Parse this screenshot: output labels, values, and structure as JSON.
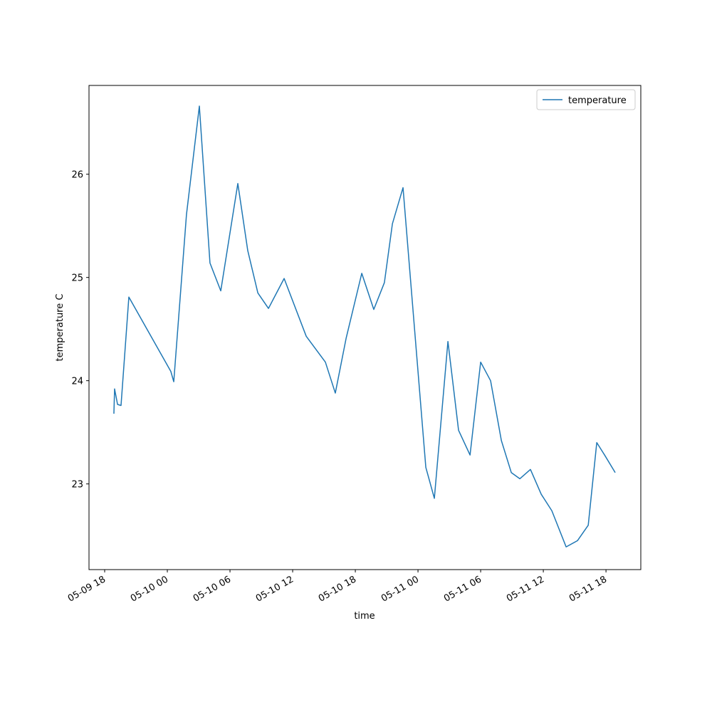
{
  "chart_data": {
    "type": "line",
    "xlabel": "time",
    "ylabel": "temperature C",
    "x": [
      "05-09 18:53",
      "05-09 18:57",
      "05-09 19:14",
      "05-09 19:34",
      "05-09 20:19",
      "05-10 00:20",
      "05-10 00:37",
      "05-10 01:50",
      "05-10 03:04",
      "05-10 04:05",
      "05-10 05:07",
      "05-10 06:45",
      "05-10 07:42",
      "05-10 08:40",
      "05-10 09:41",
      "05-10 11:11",
      "05-10 13:18",
      "05-10 15:08",
      "05-10 16:05",
      "05-10 17:07",
      "05-10 18:37",
      "05-10 19:46",
      "05-10 20:47",
      "05-10 21:33",
      "05-10 22:34",
      "05-11 00:45",
      "05-11 01:34",
      "05-11 02:52",
      "05-11 03:53",
      "05-11 04:59",
      "05-11 06:00",
      "05-11 06:57",
      "05-11 07:59",
      "05-11 08:56",
      "05-11 09:45",
      "05-11 10:46",
      "05-11 11:48",
      "05-11 12:49",
      "05-11 14:11",
      "05-11 15:16",
      "05-11 16:18",
      "05-11 17:07",
      "05-11 17:52",
      "05-11 18:53"
    ],
    "series": [
      {
        "name": "temperature",
        "color": "#1f77b4",
        "values": [
          23.68,
          23.92,
          23.77,
          23.76,
          24.81,
          24.09,
          23.99,
          25.61,
          26.66,
          25.14,
          24.87,
          25.91,
          25.26,
          24.85,
          24.7,
          24.99,
          24.43,
          24.18,
          23.88,
          24.41,
          25.04,
          24.69,
          24.95,
          25.52,
          25.87,
          23.16,
          22.86,
          24.38,
          23.52,
          23.28,
          24.18,
          24.0,
          23.42,
          23.11,
          23.05,
          23.14,
          22.9,
          22.74,
          22.39,
          22.45,
          22.6,
          23.4,
          23.28,
          23.11
        ]
      }
    ],
    "xlim": [
      "05-09 16:30",
      "05-11 21:20"
    ],
    "xticks": [
      {
        "value": "05-09 18:00",
        "label": "05-09 18"
      },
      {
        "value": "05-10 00:00",
        "label": "05-10 00"
      },
      {
        "value": "05-10 06:00",
        "label": "05-10 06"
      },
      {
        "value": "05-10 12:00",
        "label": "05-10 12"
      },
      {
        "value": "05-10 18:00",
        "label": "05-10 18"
      },
      {
        "value": "05-11 00:00",
        "label": "05-11 00"
      },
      {
        "value": "05-11 06:00",
        "label": "05-11 06"
      },
      {
        "value": "05-11 12:00",
        "label": "05-11 12"
      },
      {
        "value": "05-11 18:00",
        "label": "05-11 18"
      }
    ],
    "ylim": [
      22.17,
      26.86
    ],
    "yticks": [
      23,
      24,
      25,
      26
    ],
    "grid": false,
    "legend": "upper right"
  }
}
